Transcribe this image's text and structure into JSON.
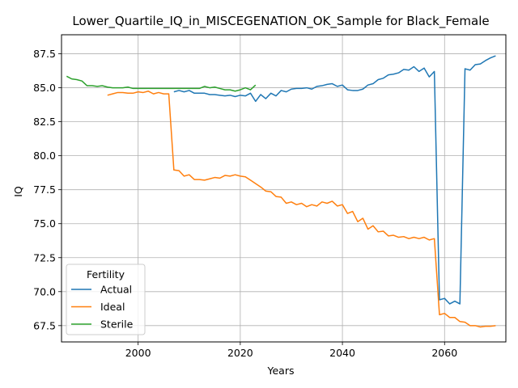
{
  "chart_data": {
    "type": "line",
    "title": "Lower_Quartile_IQ_in_MISCEGENATION_OK_Sample for Black_Female",
    "xlabel": "Years",
    "ylabel": "IQ",
    "xlim": [
      1985,
      2072
    ],
    "ylim": [
      66.3,
      88.9
    ],
    "xticks": [
      2000,
      2020,
      2040,
      2060
    ],
    "yticks": [
      67.5,
      70.0,
      72.5,
      75.0,
      77.5,
      80.0,
      82.5,
      85.0,
      87.5
    ],
    "grid": true,
    "legend": {
      "title": "Fertility",
      "position": "lower left"
    },
    "colors": {
      "Actual": "#1f77b4",
      "Ideal": "#ff7f0e",
      "Sterile": "#2ca02c"
    },
    "series": [
      {
        "name": "Actual",
        "x": [
          2007,
          2008,
          2009,
          2010,
          2011,
          2012,
          2013,
          2014,
          2015,
          2016,
          2017,
          2018,
          2019,
          2020,
          2021,
          2022,
          2023,
          2024,
          2025,
          2026,
          2027,
          2028,
          2029,
          2030,
          2031,
          2032,
          2033,
          2034,
          2035,
          2036,
          2037,
          2038,
          2039,
          2040,
          2041,
          2042,
          2043,
          2044,
          2045,
          2046,
          2047,
          2048,
          2049,
          2050,
          2051,
          2052,
          2053,
          2054,
          2055,
          2056,
          2057,
          2058,
          2059,
          2060,
          2061,
          2062,
          2063,
          2064,
          2065,
          2066,
          2067,
          2068,
          2069,
          2070
        ],
        "values": [
          84.7,
          84.8,
          84.7,
          84.8,
          84.6,
          84.6,
          84.6,
          84.5,
          84.5,
          84.45,
          84.4,
          84.45,
          84.35,
          84.45,
          84.4,
          84.6,
          84.0,
          84.5,
          84.2,
          84.6,
          84.4,
          84.8,
          84.7,
          84.9,
          84.95,
          84.95,
          85.0,
          84.9,
          85.1,
          85.15,
          85.25,
          85.3,
          85.1,
          85.2,
          84.85,
          84.8,
          84.8,
          84.9,
          85.2,
          85.3,
          85.6,
          85.7,
          85.95,
          86.0,
          86.1,
          86.35,
          86.3,
          86.55,
          86.2,
          86.45,
          85.8,
          86.2,
          69.4,
          69.5,
          69.1,
          69.3,
          69.1,
          86.4,
          86.3,
          86.7,
          86.75,
          87.0,
          87.2,
          87.35
        ]
      },
      {
        "name": "Ideal",
        "x": [
          1994,
          1995,
          1996,
          1997,
          1998,
          1999,
          2000,
          2001,
          2002,
          2003,
          2004,
          2005,
          2006,
          2007,
          2008,
          2009,
          2010,
          2011,
          2012,
          2013,
          2014,
          2015,
          2016,
          2017,
          2018,
          2019,
          2020,
          2021,
          2022,
          2023,
          2024,
          2025,
          2026,
          2027,
          2028,
          2029,
          2030,
          2031,
          2032,
          2033,
          2034,
          2035,
          2036,
          2037,
          2038,
          2039,
          2040,
          2041,
          2042,
          2043,
          2044,
          2045,
          2046,
          2047,
          2048,
          2049,
          2050,
          2051,
          2052,
          2053,
          2054,
          2055,
          2056,
          2057,
          2058,
          2059,
          2060,
          2061,
          2062,
          2063,
          2064,
          2065,
          2066,
          2067,
          2068,
          2069,
          2070
        ],
        "values": [
          84.45,
          84.55,
          84.65,
          84.65,
          84.6,
          84.6,
          84.7,
          84.65,
          84.75,
          84.55,
          84.65,
          84.55,
          84.55,
          78.95,
          78.9,
          78.5,
          78.6,
          78.25,
          78.25,
          78.2,
          78.3,
          78.4,
          78.35,
          78.55,
          78.5,
          78.6,
          78.5,
          78.45,
          78.2,
          77.95,
          77.7,
          77.4,
          77.35,
          77.0,
          76.95,
          76.5,
          76.6,
          76.4,
          76.5,
          76.25,
          76.4,
          76.3,
          76.6,
          76.5,
          76.65,
          76.3,
          76.4,
          75.75,
          75.9,
          75.15,
          75.4,
          74.6,
          74.85,
          74.4,
          74.45,
          74.1,
          74.15,
          74.0,
          74.05,
          73.9,
          74.0,
          73.9,
          74.0,
          73.8,
          73.9,
          68.3,
          68.4,
          68.1,
          68.1,
          67.8,
          67.75,
          67.5,
          67.5,
          67.4,
          67.45,
          67.45,
          67.5
        ]
      },
      {
        "name": "Sterile",
        "x": [
          1986,
          1987,
          1988,
          1989,
          1990,
          1991,
          1992,
          1993,
          1994,
          1995,
          1996,
          1997,
          1998,
          1999,
          2000,
          2001,
          2002,
          2003,
          2004,
          2005,
          2006,
          2007,
          2008,
          2009,
          2010,
          2011,
          2012,
          2013,
          2014,
          2015,
          2016,
          2017,
          2018,
          2019,
          2020,
          2021,
          2022,
          2023
        ],
        "values": [
          85.85,
          85.65,
          85.6,
          85.5,
          85.15,
          85.15,
          85.1,
          85.15,
          85.05,
          85.0,
          85.0,
          85.0,
          85.05,
          84.95,
          84.95,
          84.95,
          84.95,
          84.95,
          84.95,
          84.95,
          84.95,
          84.95,
          84.95,
          84.95,
          84.95,
          84.95,
          84.95,
          85.1,
          85.0,
          85.05,
          84.95,
          84.85,
          84.85,
          84.75,
          84.85,
          85.0,
          84.85,
          85.2
        ]
      }
    ]
  }
}
